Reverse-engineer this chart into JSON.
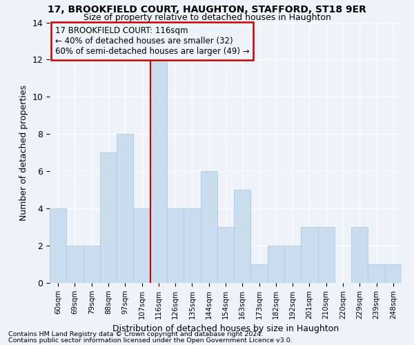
{
  "title1": "17, BROOKFIELD COURT, HAUGHTON, STAFFORD, ST18 9ER",
  "title2": "Size of property relative to detached houses in Haughton",
  "xlabel": "Distribution of detached houses by size in Haughton",
  "ylabel": "Number of detached properties",
  "categories": [
    "60sqm",
    "69sqm",
    "79sqm",
    "88sqm",
    "97sqm",
    "107sqm",
    "116sqm",
    "126sqm",
    "135sqm",
    "144sqm",
    "154sqm",
    "163sqm",
    "173sqm",
    "182sqm",
    "192sqm",
    "201sqm",
    "210sqm",
    "220sqm",
    "229sqm",
    "239sqm",
    "248sqm"
  ],
  "values": [
    4,
    2,
    2,
    7,
    8,
    4,
    12,
    4,
    4,
    6,
    3,
    5,
    1,
    2,
    2,
    3,
    3,
    0,
    3,
    1,
    1
  ],
  "bar_color": "#c9ddef",
  "bar_edge_color": "#b0c8e0",
  "subject_bar_index": 6,
  "subject_line_color": "#cc0000",
  "annotation_line1": "17 BROOKFIELD COURT: 116sqm",
  "annotation_line2": "← 40% of detached houses are smaller (32)",
  "annotation_line3": "60% of semi-detached houses are larger (49) →",
  "annotation_box_color": "#cc0000",
  "ylim": [
    0,
    14
  ],
  "yticks": [
    0,
    2,
    4,
    6,
    8,
    10,
    12,
    14
  ],
  "footnote1": "Contains HM Land Registry data © Crown copyright and database right 2024.",
  "footnote2": "Contains public sector information licensed under the Open Government Licence v3.0.",
  "background_color": "#eef2f9",
  "grid_color": "#ffffff"
}
